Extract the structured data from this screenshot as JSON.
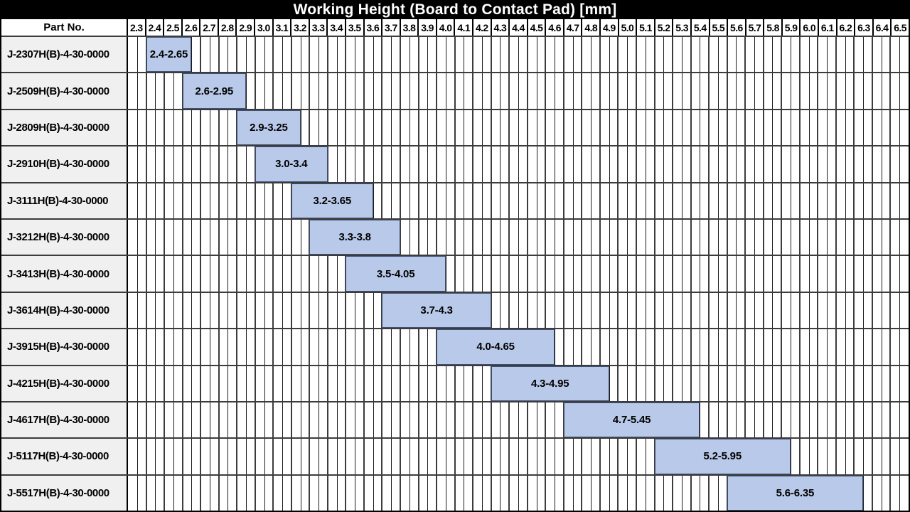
{
  "colors": {
    "title_bg": "#000000",
    "title_text": "#ffffff",
    "part_cell_bg": "#f0f0f0",
    "bar_fill": "#b9c9e9",
    "bar_border": "#3f5173",
    "grid_minor": "#1b1b1b",
    "grid_major": "#3c3c3c",
    "row_border": "#3c3c3c",
    "header_sep": "#000000"
  },
  "chart_data": {
    "type": "bar",
    "subtype": "horizontal-range",
    "title": "Working Height (Board to Contact Pad) [mm]",
    "ylabel_column_header": "Part No.",
    "categories": [
      "J-2307H(B)-4-30-0000",
      "J-2509H(B)-4-30-0000",
      "J-2809H(B)-4-30-0000",
      "J-2910H(B)-4-30-0000",
      "J-3111H(B)-4-30-0000",
      "J-3212H(B)-4-30-0000",
      "J-3413H(B)-4-30-0000",
      "J-3614H(B)-4-30-0000",
      "J-3915H(B)-4-30-0000",
      "J-4215H(B)-4-30-0000",
      "J-4617H(B)-4-30-0000",
      "J-5117H(B)-4-30-0000",
      "J-5517H(B)-4-30-0000"
    ],
    "ranges": [
      [
        2.4,
        2.65
      ],
      [
        2.6,
        2.95
      ],
      [
        2.9,
        3.25
      ],
      [
        3.0,
        3.4
      ],
      [
        3.2,
        3.65
      ],
      [
        3.3,
        3.8
      ],
      [
        3.5,
        4.05
      ],
      [
        3.7,
        4.3
      ],
      [
        4.0,
        4.65
      ],
      [
        4.3,
        4.95
      ],
      [
        4.7,
        5.45
      ],
      [
        5.2,
        5.95
      ],
      [
        5.6,
        6.35
      ]
    ],
    "range_labels": [
      "2.4-2.65",
      "2.6-2.95",
      "2.9-3.25",
      "3.0-3.4",
      "3.2-3.65",
      "3.3-3.8",
      "3.5-4.05",
      "3.7-4.3",
      "4.0-4.65",
      "4.3-4.95",
      "4.7-5.45",
      "5.2-5.95",
      "5.6-6.35"
    ],
    "xlim": [
      2.3,
      6.6
    ],
    "xtick_step": 0.1,
    "xminor_step": 0.05,
    "xtick_labels": [
      "2.3",
      "2.4",
      "2.5",
      "2.6",
      "2.7",
      "2.8",
      "2.9",
      "3.0",
      "3.1",
      "3.2",
      "3.3",
      "3.4",
      "3.5",
      "3.6",
      "3.7",
      "3.8",
      "3.9",
      "4.0",
      "4.1",
      "4.2",
      "4.3",
      "4.4",
      "4.5",
      "4.6",
      "4.7",
      "4.8",
      "4.9",
      "5.0",
      "5.1",
      "5.2",
      "5.3",
      "5.4",
      "5.5",
      "5.6",
      "5.7",
      "5.8",
      "5.9",
      "6.0",
      "6.1",
      "6.2",
      "6.3",
      "6.4",
      "6.5"
    ],
    "grid": true,
    "legend": false
  }
}
